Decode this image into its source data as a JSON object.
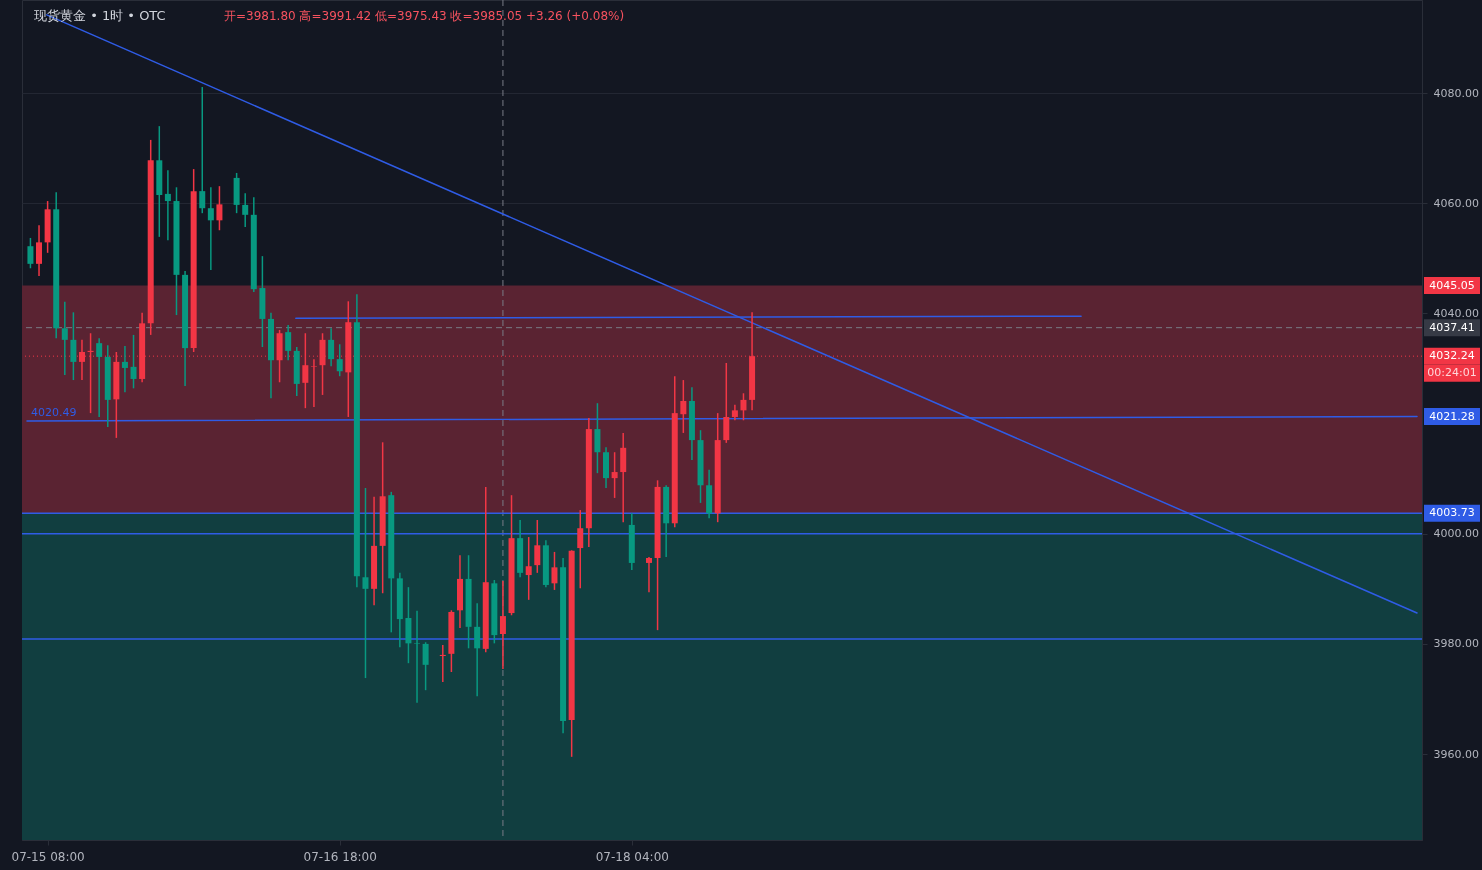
{
  "chart_data": {
    "type": "candlestick",
    "title": "现货黄金 • 1时 • OTC",
    "subtitle": "开=3981.80 高=3991.42 低=3975.43 收=3985.05 +3.26 (+0.08%)",
    "x": [
      "--07-15T06:00",
      "--07-15T07:00",
      "--07-15T08:00",
      "--07-15T09:00",
      "--07-15T10:00",
      "--07-15T11:00",
      "--07-15T12:00",
      "--07-15T13:00",
      "--07-15T14:00",
      "--07-15T15:00",
      "--07-15T16:00",
      "--07-15T17:00",
      "--07-15T18:00",
      "--07-15T19:00",
      "--07-15T20:00",
      "--07-15T21:00",
      "--07-15T22:00",
      "--07-15T23:00",
      "--07-16T00:00",
      "--07-16T01:00",
      "--07-16T02:00",
      "--07-16T03:00",
      "--07-16T04:00",
      "--07-16T06:00",
      "--07-16T07:00",
      "--07-16T08:00",
      "--07-16T09:00",
      "--07-16T10:00",
      "--07-16T11:00",
      "--07-16T12:00",
      "--07-16T13:00",
      "--07-16T14:00",
      "--07-16T15:00",
      "--07-16T16:00",
      "--07-16T17:00",
      "--07-16T18:00",
      "--07-16T19:00",
      "--07-16T20:00",
      "--07-16T21:00",
      "--07-16T22:00",
      "--07-16T23:00",
      "--07-17T00:00",
      "--07-17T01:00",
      "--07-17T02:00",
      "--07-17T03:00",
      "--07-17T04:00",
      "--07-17T06:00",
      "--07-17T07:00",
      "--07-17T08:00",
      "--07-17T09:00",
      "--07-17T10:00",
      "--07-17T11:00",
      "--07-17T12:00",
      "--07-17T13:00",
      "--07-17T14:00",
      "--07-17T15:00",
      "--07-17T16:00",
      "--07-17T17:00",
      "--07-17T18:00",
      "--07-17T19:00",
      "--07-17T20:00",
      "--07-17T21:00",
      "--07-17T22:00",
      "--07-17T23:00",
      "--07-18T00:00",
      "--07-18T01:00",
      "--07-18T02:00",
      "--07-18T03:00",
      "--07-18T04:00",
      "--07-18T06:00",
      "--07-18T07:00",
      "--07-18T08:00",
      "--07-18T09:00",
      "--07-18T10:00",
      "--07-18T11:00",
      "--07-18T12:00",
      "--07-18T13:00",
      "--07-18T14:00",
      "--07-18T15:00",
      "--07-18T16:00",
      "--07-18T17:00",
      "--07-18T18:00"
    ],
    "ohlc": [
      [
        4052.2,
        4053.7,
        4048.2,
        4049.0
      ],
      [
        4049.0,
        4056.0,
        4046.8,
        4052.9
      ],
      [
        4052.9,
        4060.4,
        4051.0,
        4058.9
      ],
      [
        4058.9,
        4062.0,
        4035.5,
        4037.3
      ],
      [
        4037.3,
        4042.1,
        4028.8,
        4035.2
      ],
      [
        4035.2,
        4040.2,
        4027.9,
        4031.2
      ],
      [
        4031.2,
        4035.2,
        4027.9,
        4033.0
      ],
      [
        4033.0,
        4036.4,
        4021.9,
        4033.2
      ],
      [
        4034.6,
        4035.5,
        4021.2,
        4032.1
      ],
      [
        4032.1,
        4034.2,
        4019.4,
        4024.3
      ],
      [
        4024.4,
        4033.0,
        4017.4,
        4031.2
      ],
      [
        4031.2,
        4034.1,
        4025.7,
        4030.1
      ],
      [
        4030.3,
        4036.1,
        4026.4,
        4028.1
      ],
      [
        4028.1,
        4040.1,
        4027.5,
        4038.2
      ],
      [
        4038.2,
        4071.5,
        4036.1,
        4067.8
      ],
      [
        4067.8,
        4074.0,
        4053.9,
        4061.5
      ],
      [
        4061.7,
        4066.0,
        4053.3,
        4060.4
      ],
      [
        4060.4,
        4062.9,
        4039.7,
        4047.0
      ],
      [
        4047.0,
        4047.7,
        4026.8,
        4033.7
      ],
      [
        4033.7,
        4066.2,
        4033.0,
        4062.2
      ],
      [
        4062.2,
        4081.1,
        4058.2,
        4059.1
      ],
      [
        4059.1,
        4062.9,
        4047.9,
        4056.9
      ],
      [
        4056.9,
        4063.1,
        4055.1,
        4059.8
      ],
      [
        4064.6,
        4065.5,
        4058.2,
        4059.7
      ],
      [
        4059.7,
        4061.8,
        4055.7,
        4057.9
      ],
      [
        4057.9,
        4061.1,
        4043.9,
        4044.4
      ],
      [
        4044.6,
        4050.4,
        4033.9,
        4039.0
      ],
      [
        4039.0,
        4040.1,
        4024.6,
        4031.5
      ],
      [
        4031.5,
        4037.0,
        4027.5,
        4036.4
      ],
      [
        4036.6,
        4037.9,
        4031.5,
        4033.2
      ],
      [
        4033.2,
        4033.9,
        4025.0,
        4027.2
      ],
      [
        4027.4,
        4036.4,
        4022.8,
        4030.6
      ],
      [
        4030.3,
        4031.7,
        4023.0,
        4030.4
      ],
      [
        4030.6,
        4036.4,
        4025.2,
        4035.2
      ],
      [
        4035.2,
        4037.3,
        4030.4,
        4031.7
      ],
      [
        4031.7,
        4034.4,
        4028.6,
        4029.5
      ],
      [
        4029.3,
        4042.2,
        4021.2,
        4038.4
      ],
      [
        4038.4,
        4043.5,
        3990.3,
        3992.3
      ],
      [
        3992.1,
        4008.3,
        3973.8,
        3990.0
      ],
      [
        3990.0,
        4006.7,
        3987.0,
        3997.8
      ],
      [
        3997.8,
        4016.6,
        3989.2,
        4006.8
      ],
      [
        4007.0,
        4007.6,
        3982.1,
        3991.9
      ],
      [
        3991.9,
        3992.9,
        3979.4,
        3984.5
      ],
      [
        3984.7,
        3990.3,
        3976.5,
        3980.1
      ],
      [
        3980.1,
        3986.0,
        3969.3,
        3980.0
      ],
      [
        3980.0,
        3980.3,
        3971.6,
        3976.2
      ],
      [
        3977.8,
        3979.8,
        3973.1,
        3978.0
      ],
      [
        3978.2,
        3986.1,
        3974.9,
        3985.8
      ],
      [
        3986.1,
        3996.1,
        3982.9,
        3991.8
      ],
      [
        3991.8,
        3996.1,
        3979.2,
        3983.1
      ],
      [
        3983.1,
        3987.4,
        3970.5,
        3979.2
      ],
      [
        3979.1,
        4008.5,
        3978.5,
        3991.2
      ],
      [
        3991.0,
        3991.6,
        3980.1,
        3981.6
      ],
      [
        3981.8,
        3991.42,
        3975.43,
        3985.05
      ],
      [
        3985.6,
        4007.0,
        3985.2,
        3999.2
      ],
      [
        3999.2,
        4002.5,
        3992.1,
        3992.9
      ],
      [
        3992.5,
        3999.4,
        3988.0,
        3994.1
      ],
      [
        3994.3,
        4002.5,
        3992.9,
        3997.9
      ],
      [
        3997.9,
        3998.8,
        3990.3,
        3990.7
      ],
      [
        3991.0,
        3996.7,
        3989.8,
        3993.9
      ],
      [
        3993.9,
        3995.6,
        3963.8,
        3966.0
      ],
      [
        3966.2,
        3997.0,
        3959.5,
        3996.9
      ],
      [
        3997.4,
        4004.3,
        3990.1,
        4001.0
      ],
      [
        4001.0,
        4021.0,
        3997.6,
        4019.0
      ],
      [
        4019.0,
        4023.7,
        4011.0,
        4014.8
      ],
      [
        4014.8,
        4015.7,
        4008.3,
        4010.1
      ],
      [
        4010.1,
        4014.8,
        4006.5,
        4011.2
      ],
      [
        4011.2,
        4018.3,
        4002.1,
        4015.6
      ],
      [
        4001.6,
        4003.7,
        3993.4,
        3994.7
      ],
      [
        3994.7,
        3995.8,
        3989.4,
        3995.6
      ],
      [
        3995.6,
        4009.7,
        3982.5,
        4008.5
      ],
      [
        4008.5,
        4008.8,
        3995.8,
        4001.9
      ],
      [
        4001.9,
        4028.6,
        4001.2,
        4021.9
      ],
      [
        4021.7,
        4027.9,
        4018.3,
        4024.1
      ],
      [
        4024.1,
        4026.6,
        4013.4,
        4017.0
      ],
      [
        4017.0,
        4018.8,
        4005.6,
        4008.8
      ],
      [
        4008.8,
        4011.6,
        4002.8,
        4003.7
      ],
      [
        4003.7,
        4021.9,
        4002.1,
        4017.0
      ],
      [
        4017.0,
        4031.0,
        4016.5,
        4021.2
      ],
      [
        4021.2,
        4023.4,
        4020.6,
        4022.4
      ],
      [
        4022.4,
        4025.5,
        4020.6,
        4024.3
      ],
      [
        4024.3,
        4040.2,
        4022.4,
        4032.24
      ]
    ],
    "series": [
      {
        "type": "line",
        "x": [
          "--07-15T07:54",
          "--07-21T23:24"
        ],
        "values": [
          4094.2,
          3985.6
        ],
        "color": "#2f5ce6"
      },
      {
        "type": "line",
        "x": [
          "--07-16T12:54",
          "--07-20T08:18"
        ],
        "values": [
          4039.1,
          4039.5
        ],
        "color": "#2f5ce6"
      },
      {
        "type": "line",
        "x": [
          "--07-15T05:36",
          "--07-21T23:24"
        ],
        "values": [
          4020.49,
          4021.28
        ],
        "value_labels": [
          "4020.49",
          "4021.28"
        ],
        "color": "#2f5ce6"
      }
    ],
    "xlim": [
      "--07-15T05:36",
      "--07-21T23:24"
    ],
    "xticks": [
      {
        "value": "--07-15T08:00",
        "label": "07-15 08:00"
      },
      {
        "value": "--07-16T18:00",
        "label": "07-16 18:00"
      },
      {
        "value": "--07-18T04:00",
        "label": "07-18 04:00"
      }
    ],
    "ylim": [
      3944.4,
      4096.9
    ],
    "yticks": [
      {
        "value": 3960,
        "label": "3960.00"
      },
      {
        "value": 3980,
        "label": "3980.00"
      },
      {
        "value": 4000,
        "label": "4000.00"
      },
      {
        "value": 4040,
        "label": "4040.00"
      },
      {
        "value": 4060,
        "label": "4060.00"
      },
      {
        "value": 4080,
        "label": "4080.00"
      }
    ],
    "bands": [
      {
        "axis": "y",
        "from": 4003.73,
        "to": 4045.05,
        "label": "4045.05",
        "color": "#5a2332"
      },
      {
        "axis": "y",
        "from": 3944.4,
        "to": 4003.73,
        "color": "#113e40"
      }
    ],
    "ref_lines": [
      {
        "axis": "y",
        "value": 4037.41,
        "label": "4037.41",
        "color": "#787b86",
        "line_style": "dashed"
      },
      {
        "axis": "x",
        "value": "--07-17T13:00",
        "color": "#787b86",
        "line_style": "dashed"
      },
      {
        "axis": "y",
        "value": 4032.24,
        "label": "4032.24",
        "color": "#f23645",
        "line_style": "dotted"
      },
      {
        "axis": "y",
        "value": 4003.73,
        "label": "4003.73",
        "color": "#2f5ce6",
        "line_style": "solid"
      },
      {
        "axis": "y",
        "value": 4000,
        "color": "#2f5ce6",
        "line_style": "solid"
      },
      {
        "axis": "y",
        "value": 3980.9,
        "color": "#2f5ce6",
        "line_style": "solid"
      }
    ],
    "annotations": [
      "00:24:01"
    ],
    "grid": "y"
  }
}
